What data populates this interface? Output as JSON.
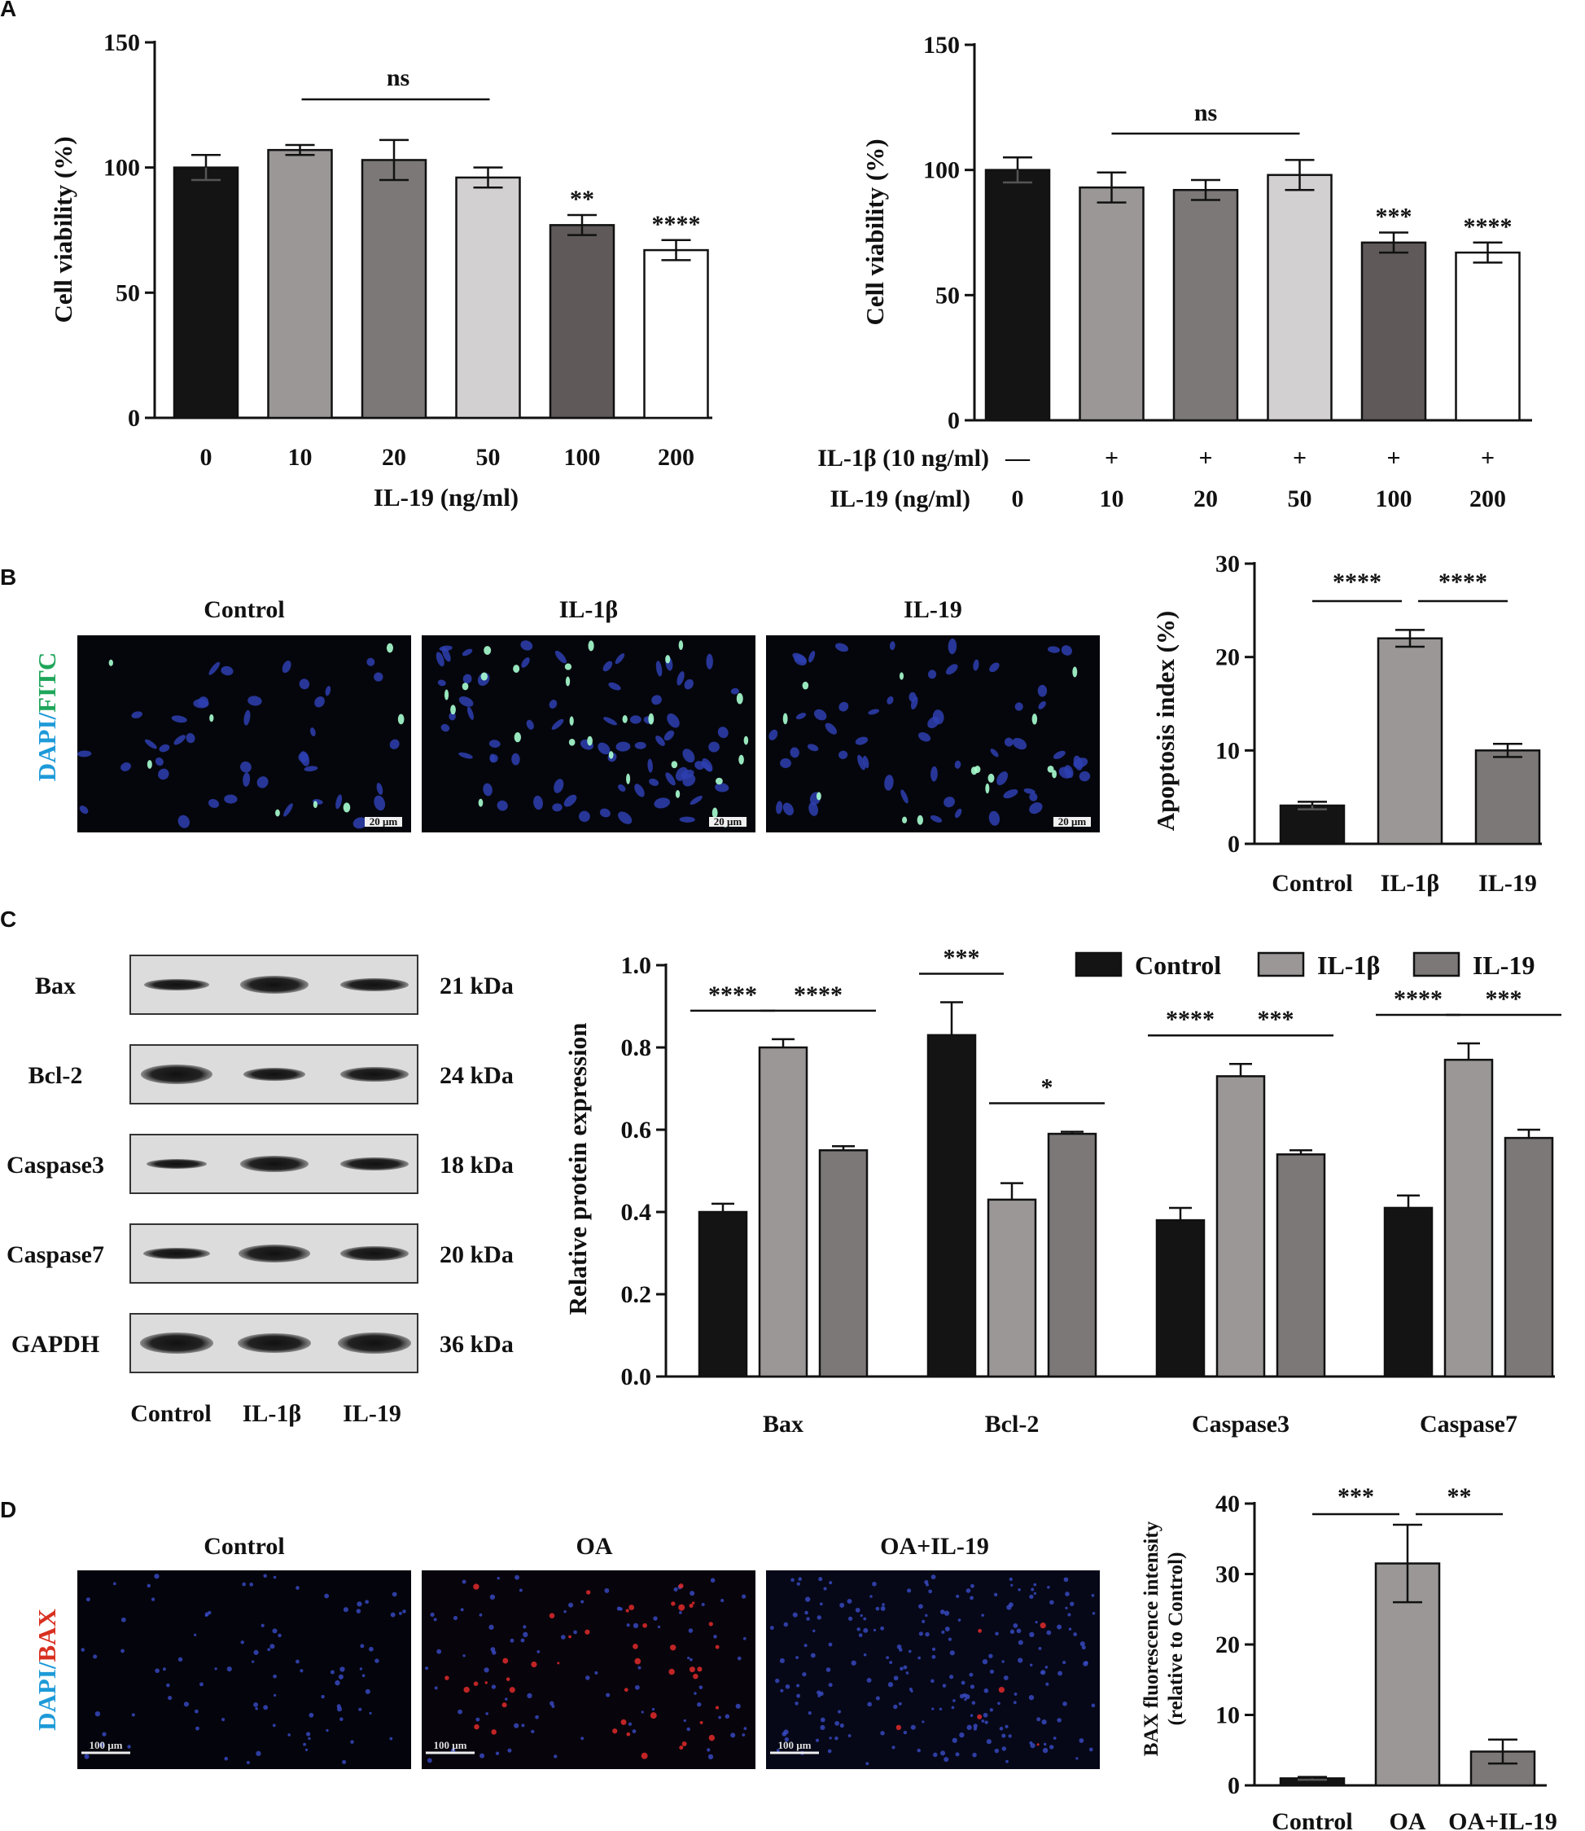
{
  "panels": {
    "A": "A",
    "B": "B",
    "C": "C",
    "D": "D"
  },
  "chart_data": [
    {
      "id": "A1",
      "type": "bar",
      "ylabel": "Cell viability (%)",
      "xlabel": "IL-19 (ng/ml)",
      "ylim": [
        0,
        150
      ],
      "yticks": [
        "0",
        "50",
        "100",
        "150"
      ],
      "categories": [
        "0",
        "10",
        "20",
        "50",
        "100",
        "200"
      ],
      "values": [
        100,
        107,
        103,
        96,
        77,
        67
      ],
      "errors": [
        5,
        2,
        8,
        4,
        4,
        4
      ],
      "colors": [
        "#141414",
        "#9b9797",
        "#7c7878",
        "#d2d0d0",
        "#5f5959",
        "#ffffff"
      ],
      "significance": [
        "",
        "",
        "",
        "",
        "**",
        "****"
      ],
      "bracket": {
        "label": "ns",
        "from": 1,
        "to": 3
      }
    },
    {
      "id": "A2",
      "type": "bar",
      "ylabel": "Cell viability (%)",
      "ylim": [
        0,
        150
      ],
      "yticks": [
        "0",
        "50",
        "100",
        "150"
      ],
      "row1_label": "IL-1β (10 ng/ml)",
      "row1": [
        "—",
        "+",
        "+",
        "+",
        "+",
        "+"
      ],
      "row2_label": "IL-19 (ng/ml)",
      "categories": [
        "0",
        "10",
        "20",
        "50",
        "100",
        "200"
      ],
      "values": [
        100,
        93,
        92,
        98,
        71,
        67
      ],
      "errors": [
        5,
        6,
        4,
        6,
        4,
        4
      ],
      "colors": [
        "#141414",
        "#9b9797",
        "#7c7878",
        "#d2d0d0",
        "#5f5959",
        "#ffffff"
      ],
      "significance": [
        "",
        "",
        "",
        "",
        "***",
        "****"
      ],
      "bracket": {
        "label": "ns",
        "from": 1,
        "to": 3
      }
    },
    {
      "id": "B",
      "type": "bar",
      "ylabel": "Apoptosis index (%)",
      "ylim": [
        0,
        30
      ],
      "yticks": [
        "0",
        "10",
        "20",
        "30"
      ],
      "categories": [
        "Control",
        "IL-1β",
        "IL-19"
      ],
      "values": [
        4.1,
        22,
        10
      ],
      "errors": [
        0.4,
        0.9,
        0.7
      ],
      "colors": [
        "#141414",
        "#9b9797",
        "#7c7878"
      ],
      "brackets": [
        {
          "label": "****",
          "from": 0,
          "to": 1
        },
        {
          "label": "****",
          "from": 1,
          "to": 2
        }
      ]
    },
    {
      "id": "C",
      "type": "bar",
      "ylabel": "Relative protein expression",
      "ylim": [
        0,
        1.0
      ],
      "yticks": [
        "0.0",
        "0.2",
        "0.4",
        "0.6",
        "0.8",
        "1.0"
      ],
      "categories": [
        "Bax",
        "Bcl-2",
        "Caspase3",
        "Caspase7"
      ],
      "series": [
        {
          "name": "Control",
          "color": "#141414",
          "values": [
            0.4,
            0.83,
            0.38,
            0.41
          ],
          "errors": [
            0.02,
            0.08,
            0.03,
            0.03
          ]
        },
        {
          "name": "IL-1β",
          "color": "#9b9797",
          "values": [
            0.8,
            0.43,
            0.73,
            0.77
          ],
          "errors": [
            0.02,
            0.04,
            0.03,
            0.04
          ]
        },
        {
          "name": "IL-19",
          "color": "#7c7878",
          "values": [
            0.55,
            0.59,
            0.54,
            0.58
          ],
          "errors": [
            0.01,
            0.005,
            0.01,
            0.02
          ]
        }
      ],
      "brackets": [
        {
          "group": 0,
          "from": 0,
          "to": 1,
          "label": "****"
        },
        {
          "group": 0,
          "from": 1,
          "to": 2,
          "label": "****"
        },
        {
          "group": 1,
          "from": 0,
          "to": 1,
          "label": "***"
        },
        {
          "group": 1,
          "from": 1,
          "to": 2,
          "label": "*"
        },
        {
          "group": 2,
          "from": 0,
          "to": 1,
          "label": "****"
        },
        {
          "group": 2,
          "from": 1,
          "to": 2,
          "label": "***"
        },
        {
          "group": 3,
          "from": 0,
          "to": 1,
          "label": "****"
        },
        {
          "group": 3,
          "from": 1,
          "to": 2,
          "label": "***"
        }
      ],
      "legend": [
        "Control",
        "IL-1β",
        "IL-19"
      ]
    },
    {
      "id": "D",
      "type": "bar",
      "ylabel": "BAX fluorescence intensity",
      "ylabel2": "(relative to Control)",
      "ylim": [
        0,
        40
      ],
      "yticks": [
        "0",
        "10",
        "20",
        "30",
        "40"
      ],
      "categories": [
        "Control",
        "OA",
        "OA+IL-19"
      ],
      "values": [
        1,
        31.5,
        4.8
      ],
      "errors": [
        0.2,
        5.5,
        1.7
      ],
      "colors": [
        "#141414",
        "#9b9797",
        "#7c7878"
      ],
      "brackets": [
        {
          "label": "***",
          "from": 0,
          "to": 1
        },
        {
          "label": "**",
          "from": 1,
          "to": 2
        }
      ]
    }
  ],
  "images_B": {
    "titles": [
      "Control",
      "IL-1β",
      "IL-19"
    ],
    "stain_prefix": "DAPI/",
    "stain_suffix": "FITC",
    "scale": "20 μm"
  },
  "images_D": {
    "titles": [
      "Control",
      "OA",
      "OA+IL-19"
    ],
    "stain_prefix": "DAPI/",
    "stain_suffix": "BAX",
    "scale": "100 μm"
  },
  "western": {
    "rows": [
      {
        "label": "Bax",
        "kda": "21 kDa"
      },
      {
        "label": "Bcl-2",
        "kda": "24 kDa"
      },
      {
        "label": "Caspase3",
        "kda": "18 kDa"
      },
      {
        "label": "Caspase7",
        "kda": "20 kDa"
      },
      {
        "label": "GAPDH",
        "kda": "36 kDa"
      }
    ],
    "lanes": [
      "Control",
      "IL-1β",
      "IL-19"
    ]
  }
}
